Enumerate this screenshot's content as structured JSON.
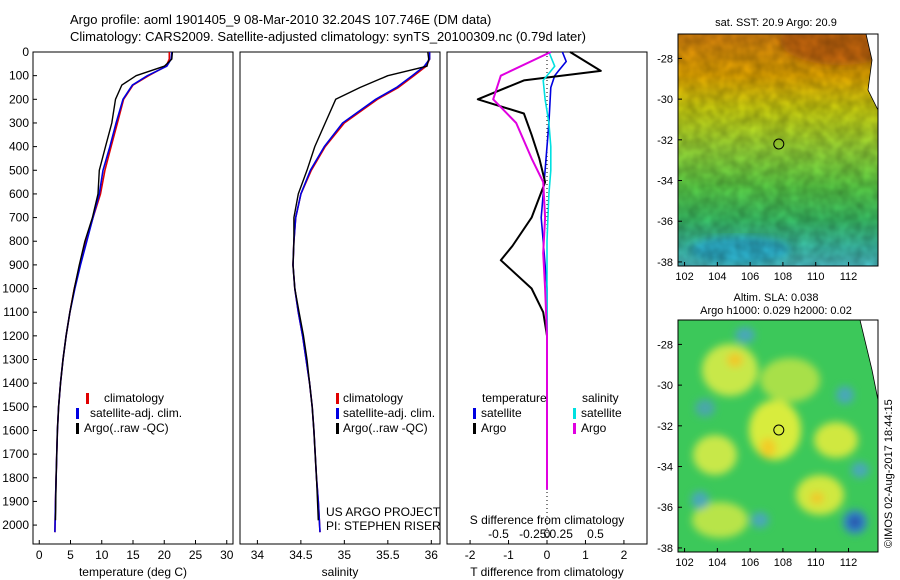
{
  "header": {
    "title_line1": "Argo profile: aoml 1901405_9 08-Mar-2010 32.204S 107.746E (DM data)",
    "title_line2": "Climatology: CARS2009. Satellite-adjusted climatology: synTS_20100309.nc (0.79d later)"
  },
  "colors": {
    "climatology": "#e00000",
    "satellite": "#0000e0",
    "argo": "#000000",
    "salinity_sat": "#00e0e0",
    "salinity_argo": "#e000e0"
  },
  "footer": {
    "credit": "US ARGO PROJECT",
    "pi": "PI: STEPHEN RISER",
    "stamp": "©IMOS 02-Aug-2017 18:44:15"
  },
  "chart_data": [
    {
      "type": "line",
      "xlabel": "temperature (deg C)",
      "ylabel": "",
      "xlim": [
        -1,
        31
      ],
      "ylim": [
        2080,
        0
      ],
      "xticks": [
        0,
        5,
        10,
        15,
        20,
        25,
        30
      ],
      "yticks": [
        0,
        100,
        200,
        300,
        400,
        500,
        600,
        700,
        800,
        900,
        1000,
        1100,
        1200,
        1300,
        1400,
        1500,
        1600,
        1700,
        1800,
        1900,
        2000
      ],
      "legend": {
        "placement": "lower-center",
        "entries": [
          "climatology",
          "satellite-adj. clim.",
          "Argo(..raw -QC)"
        ]
      },
      "series": [
        {
          "name": "climatology",
          "x": [
            20.8,
            20.8,
            20.3,
            17.5,
            15.0,
            13.5,
            12.5,
            11.5,
            10.5,
            9.8,
            8.6,
            7.5,
            6.5,
            5.6,
            4.9,
            4.3,
            3.8,
            3.4,
            3.1,
            2.9,
            2.7,
            2.6,
            2.5
          ],
          "y": [
            0,
            30,
            60,
            100,
            140,
            200,
            300,
            400,
            500,
            600,
            700,
            800,
            900,
            1000,
            1100,
            1200,
            1300,
            1400,
            1500,
            1600,
            1800,
            1900,
            2030
          ]
        },
        {
          "name": "satellite-adj. clim.",
          "x": [
            21.2,
            21.1,
            20.4,
            17.3,
            14.9,
            13.4,
            12.3,
            11.3,
            10.2,
            9.6,
            8.6,
            7.6,
            6.6,
            5.7,
            4.9,
            4.3,
            3.8,
            3.4,
            3.1,
            2.9,
            2.7,
            2.6,
            2.5
          ],
          "y": [
            0,
            30,
            60,
            100,
            140,
            200,
            300,
            400,
            500,
            600,
            700,
            800,
            900,
            1000,
            1100,
            1200,
            1300,
            1400,
            1500,
            1600,
            1800,
            1900,
            2030
          ]
        },
        {
          "name": "Argo(..raw -QC)",
          "x": [
            21.3,
            21.2,
            20.0,
            15.5,
            13.2,
            12.2,
            11.6,
            10.6,
            9.6,
            9.4,
            8.5,
            7.3,
            6.4,
            5.6,
            4.9,
            4.3,
            3.8,
            3.4,
            3.1,
            2.9,
            2.7,
            2.6
          ],
          "y": [
            0,
            30,
            60,
            100,
            140,
            200,
            300,
            400,
            500,
            600,
            700,
            800,
            900,
            1000,
            1100,
            1200,
            1300,
            1400,
            1500,
            1600,
            1800,
            1980
          ]
        }
      ]
    },
    {
      "type": "line",
      "xlabel": "salinity",
      "xlim": [
        33.8,
        36.1
      ],
      "ylim": [
        2080,
        0
      ],
      "xticks": [
        34,
        34.5,
        35,
        35.5,
        36
      ],
      "legend": {
        "placement": "lower-center",
        "entries": [
          "climatology",
          "satellite-adj. clim.",
          "Argo(..raw -QC)"
        ]
      },
      "series": [
        {
          "name": "climatology",
          "x": [
            35.98,
            35.98,
            35.94,
            35.8,
            35.62,
            35.38,
            35.0,
            34.78,
            34.62,
            34.5,
            34.44,
            34.42,
            34.41,
            34.43,
            34.47,
            34.52,
            34.56,
            34.6,
            34.63,
            34.65,
            34.68,
            34.7,
            34.72
          ],
          "y": [
            0,
            30,
            60,
            100,
            150,
            200,
            300,
            400,
            500,
            600,
            700,
            800,
            900,
            1000,
            1100,
            1200,
            1300,
            1400,
            1500,
            1600,
            1800,
            1900,
            2030
          ]
        },
        {
          "name": "satellite-adj. clim.",
          "x": [
            35.98,
            35.98,
            35.92,
            35.78,
            35.6,
            35.36,
            34.98,
            34.77,
            34.61,
            34.5,
            34.44,
            34.42,
            34.41,
            34.43,
            34.47,
            34.52,
            34.56,
            34.6,
            34.63,
            34.65,
            34.68,
            34.7,
            34.72
          ],
          "y": [
            0,
            30,
            60,
            100,
            150,
            200,
            300,
            400,
            500,
            600,
            700,
            800,
            900,
            1000,
            1100,
            1200,
            1300,
            1400,
            1500,
            1600,
            1800,
            1900,
            2030
          ]
        },
        {
          "name": "Argo(..raw -QC)",
          "x": [
            35.96,
            35.97,
            35.95,
            35.5,
            35.18,
            34.9,
            34.78,
            34.66,
            34.57,
            34.47,
            34.42,
            34.42,
            34.41,
            34.43,
            34.48,
            34.53,
            34.57,
            34.6,
            34.63,
            34.65,
            34.68,
            34.7
          ],
          "y": [
            0,
            30,
            60,
            100,
            150,
            200,
            300,
            400,
            500,
            600,
            700,
            800,
            900,
            1000,
            1100,
            1200,
            1300,
            1400,
            1500,
            1600,
            1800,
            1980
          ]
        }
      ]
    },
    {
      "type": "line",
      "xlabel": "T difference from climatology",
      "xlabel_top": "S difference from climatology",
      "xlim": [
        -2.6,
        2.6
      ],
      "ylim": [
        2080,
        0
      ],
      "xticks_bottom": [
        -2,
        -1,
        0,
        1,
        2
      ],
      "xticks_top": [
        "-0.5",
        "-0.25",
        "0",
        "0.25",
        "0.5"
      ],
      "legend": {
        "placement": "lower-center",
        "headers": [
          "temperature",
          "salinity"
        ],
        "entries": [
          "satellite",
          "Argo",
          "satellite",
          "Argo"
        ]
      },
      "series": [
        {
          "name": "temperature satellite",
          "x": [
            0.4,
            0.5,
            0.3,
            0.2,
            0.1,
            0.05,
            0.0,
            -0.05,
            -0.1,
            -0.15,
            -0.1,
            -0.05,
            0.0,
            0.0,
            0.0,
            0.0,
            0.0
          ],
          "y": [
            0,
            40,
            80,
            100,
            150,
            300,
            400,
            500,
            600,
            700,
            800,
            900,
            1000,
            1200,
            1400,
            1600,
            1850
          ]
        },
        {
          "name": "temperature Argo",
          "x": [
            0.6,
            1.4,
            -0.6,
            -1.8,
            -0.6,
            -0.4,
            -0.2,
            -0.05,
            -0.4,
            -0.9,
            -1.2,
            -0.4,
            -0.1,
            0.0,
            0.0,
            0.0,
            0.0
          ],
          "y": [
            0,
            80,
            120,
            200,
            260,
            350,
            450,
            550,
            700,
            820,
            880,
            1000,
            1100,
            1200,
            1400,
            1600,
            1850
          ]
        },
        {
          "name": "salinity satellite",
          "x": [
            0.05,
            0.2,
            -0.1,
            -0.05,
            0.05,
            0.1,
            0.1,
            0.05,
            0.0,
            0.0,
            0.0,
            0.0,
            0.0
          ],
          "y": [
            0,
            60,
            120,
            200,
            300,
            400,
            500,
            600,
            800,
            1000,
            1200,
            1400,
            1850
          ]
        },
        {
          "name": "salinity Argo",
          "x": [
            0.1,
            -1.2,
            -1.4,
            -0.8,
            -0.4,
            -0.1,
            -0.05,
            -0.1,
            -0.05,
            0.0,
            0.0,
            0.0
          ],
          "y": [
            0,
            100,
            200,
            300,
            450,
            550,
            700,
            850,
            1000,
            1200,
            1400,
            1850
          ]
        }
      ]
    },
    {
      "type": "heatmap",
      "title": "sat. SST: 20.9 Argo: 20.9",
      "xlim": [
        101.6,
        113.8
      ],
      "ylim": [
        -38.2,
        -26.8
      ],
      "xticks": [
        102,
        104,
        106,
        108,
        110,
        112
      ],
      "yticks": [
        -28,
        -30,
        -32,
        -34,
        -36,
        -38
      ],
      "marker": {
        "lon": 107.746,
        "lat": -32.204
      }
    },
    {
      "type": "heatmap",
      "title": "Altim. SLA: 0.038",
      "subtitle": "Argo h1000: 0.029 h2000: 0.02",
      "xlim": [
        101.6,
        113.8
      ],
      "ylim": [
        -38.2,
        -26.8
      ],
      "xticks": [
        102,
        104,
        106,
        108,
        110,
        112
      ],
      "yticks": [
        -28,
        -30,
        -32,
        -34,
        -36,
        -38
      ],
      "marker": {
        "lon": 107.746,
        "lat": -32.204
      }
    }
  ]
}
